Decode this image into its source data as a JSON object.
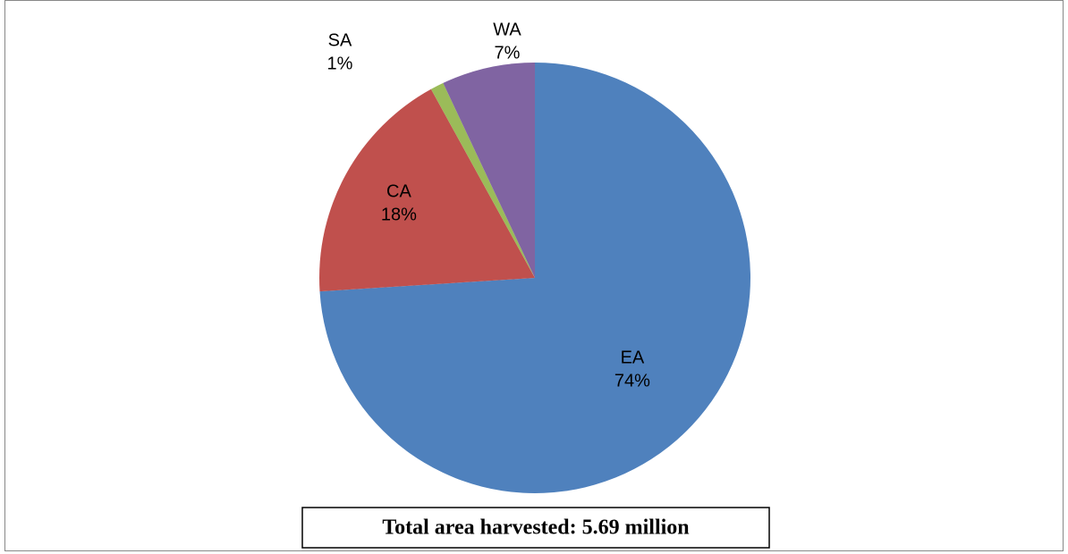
{
  "chart_data": {
    "type": "pie",
    "categories": [
      "EA",
      "CA",
      "SA",
      "WA"
    ],
    "values": [
      74,
      18,
      1,
      7
    ],
    "value_labels": [
      "74%",
      "18%",
      "1%",
      "7%"
    ],
    "colors": [
      "#4f81bd",
      "#c0504d",
      "#9bbb59",
      "#8064a2"
    ],
    "annotation": "Total area harvested: 5.69 million"
  }
}
